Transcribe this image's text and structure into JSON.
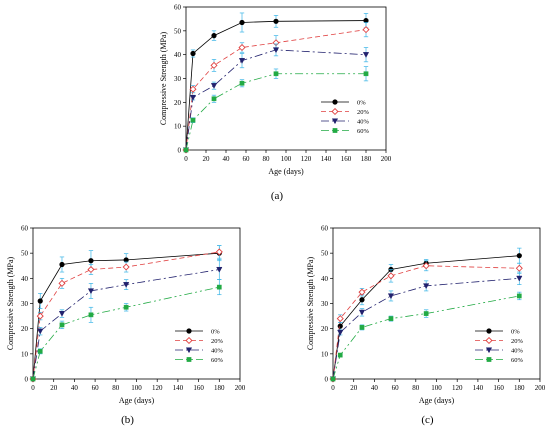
{
  "chart_data": [
    {
      "type": "line",
      "panel_label": "(a)",
      "xlabel": "Age (days)",
      "ylabel": "Compressive Strength (MPa)",
      "xlim": [
        0,
        200
      ],
      "ylim": [
        0,
        60
      ],
      "xticks": [
        0,
        20,
        40,
        60,
        80,
        100,
        120,
        140,
        160,
        180,
        200
      ],
      "yticks": [
        0,
        10,
        20,
        30,
        40,
        50,
        60
      ],
      "grid": false,
      "legend_position": "lower-right",
      "x": [
        0,
        7,
        28,
        56,
        90,
        180
      ],
      "series": [
        {
          "name": "0%",
          "color": "#000000",
          "marker": "circle-filled",
          "dash": "solid",
          "values": [
            0,
            40.5,
            48,
            53.5,
            54,
            54.3
          ],
          "errors": [
            0,
            1.5,
            2,
            4,
            2.5,
            3
          ]
        },
        {
          "name": "20%",
          "color": "#e04040",
          "marker": "diamond-open",
          "dash": "5,3",
          "values": [
            0,
            25.5,
            35.5,
            43,
            45,
            50.5
          ],
          "errors": [
            0,
            1.5,
            2.5,
            2,
            3,
            3
          ]
        },
        {
          "name": "40%",
          "color": "#22226e",
          "marker": "triangle-down",
          "dash": "8,3,2,3",
          "values": [
            0,
            22,
            27,
            37.5,
            42,
            40
          ],
          "errors": [
            0,
            1,
            1.5,
            3,
            2.5,
            3
          ]
        },
        {
          "name": "60%",
          "color": "#22aa44",
          "marker": "square-filled",
          "dash": "8,3,2,3,2,3",
          "values": [
            0,
            12.5,
            21.5,
            28,
            32,
            32
          ],
          "errors": [
            0,
            1,
            1.5,
            1.5,
            2,
            3
          ]
        }
      ]
    },
    {
      "type": "line",
      "panel_label": "(b)",
      "xlabel": "Age (days)",
      "ylabel": "Compressive Strength (MPa)",
      "xlim": [
        0,
        200
      ],
      "ylim": [
        0,
        60
      ],
      "xticks": [
        0,
        20,
        40,
        60,
        80,
        100,
        120,
        140,
        160,
        180,
        200
      ],
      "yticks": [
        0,
        10,
        20,
        30,
        40,
        50,
        60
      ],
      "grid": false,
      "legend_position": "lower-right",
      "x": [
        0,
        7,
        28,
        56,
        90,
        180
      ],
      "series": [
        {
          "name": "0%",
          "color": "#000000",
          "marker": "circle-filled",
          "dash": "solid",
          "values": [
            0,
            31,
            45.5,
            47,
            47.3,
            50
          ],
          "errors": [
            0,
            3,
            3,
            4,
            2.5,
            3
          ]
        },
        {
          "name": "20%",
          "color": "#e04040",
          "marker": "diamond-open",
          "dash": "5,3",
          "values": [
            0,
            25,
            38,
            43.5,
            44.5,
            50.5
          ],
          "errors": [
            0,
            1.5,
            2,
            2,
            2,
            2.5
          ]
        },
        {
          "name": "40%",
          "color": "#22226e",
          "marker": "triangle-down",
          "dash": "8,3,2,3",
          "values": [
            0,
            19,
            26,
            35,
            37.5,
            43.5
          ],
          "errors": [
            0,
            1.5,
            1.5,
            3,
            2,
            4
          ]
        },
        {
          "name": "60%",
          "color": "#22aa44",
          "marker": "square-filled",
          "dash": "8,3,2,3,2,3",
          "values": [
            0,
            11,
            21.5,
            25.5,
            28.5,
            36.5
          ],
          "errors": [
            0,
            1,
            1.5,
            3,
            1.5,
            3
          ]
        }
      ]
    },
    {
      "type": "line",
      "panel_label": "(c)",
      "xlabel": "Age (days)",
      "ylabel": "Compressive Strength (MPa)",
      "xlim": [
        0,
        200
      ],
      "ylim": [
        0,
        60
      ],
      "xticks": [
        0,
        20,
        40,
        60,
        80,
        100,
        120,
        140,
        160,
        180,
        200
      ],
      "yticks": [
        0,
        10,
        20,
        30,
        40,
        50,
        60
      ],
      "grid": false,
      "legend_position": "lower-right",
      "x": [
        0,
        7,
        28,
        56,
        90,
        180
      ],
      "series": [
        {
          "name": "0%",
          "color": "#000000",
          "marker": "circle-filled",
          "dash": "solid",
          "values": [
            0,
            21,
            31.5,
            43.5,
            46,
            49
          ],
          "errors": [
            0,
            1.5,
            2,
            2,
            1.5,
            3
          ]
        },
        {
          "name": "20%",
          "color": "#e04040",
          "marker": "diamond-open",
          "dash": "5,3",
          "values": [
            0,
            24,
            34.5,
            41,
            45,
            44
          ],
          "errors": [
            0,
            1.5,
            1.5,
            2.5,
            2,
            2
          ]
        },
        {
          "name": "40%",
          "color": "#22226e",
          "marker": "triangle-down",
          "dash": "8,3,2,3",
          "values": [
            0,
            18.5,
            26.5,
            33,
            37,
            40
          ],
          "errors": [
            0,
            1,
            1.5,
            2,
            2,
            2.5
          ]
        },
        {
          "name": "60%",
          "color": "#22aa44",
          "marker": "square-filled",
          "dash": "8,3,2,3,2,3",
          "values": [
            0,
            9.5,
            20.5,
            24,
            26,
            33
          ],
          "errors": [
            0,
            0.5,
            1,
            1,
            1.5,
            1.5
          ]
        }
      ]
    }
  ]
}
